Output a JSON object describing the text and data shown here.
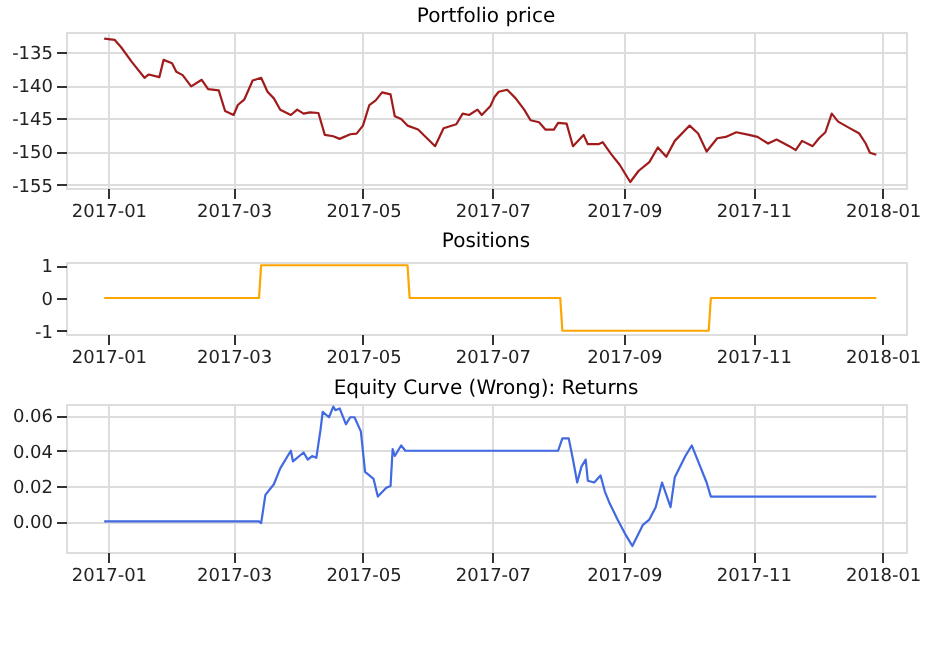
{
  "chart_data": [
    {
      "type": "line",
      "title": "Portfolio price",
      "grid": true,
      "xlim": [
        "2016-12-12",
        "2018-01-12"
      ],
      "xticks": [
        "2017-01",
        "2017-03",
        "2017-05",
        "2017-07",
        "2017-09",
        "2017-11",
        "2018-01"
      ],
      "ylim": [
        -155.5,
        -132
      ],
      "yticks": [
        -155,
        -150,
        -145,
        -140,
        -135
      ],
      "x": [
        "2016-12-30",
        "2017-01-04",
        "2017-01-07",
        "2017-01-12",
        "2017-01-18",
        "2017-01-20",
        "2017-01-25",
        "2017-01-27",
        "2017-01-31",
        "2017-02-02",
        "2017-02-05",
        "2017-02-09",
        "2017-02-14",
        "2017-02-17",
        "2017-02-22",
        "2017-02-25",
        "2017-03-01",
        "2017-03-03",
        "2017-03-06",
        "2017-03-10",
        "2017-03-14",
        "2017-03-17",
        "2017-03-20",
        "2017-03-23",
        "2017-03-28",
        "2017-03-31",
        "2017-04-03",
        "2017-04-06",
        "2017-04-10",
        "2017-04-13",
        "2017-04-17",
        "2017-04-20",
        "2017-04-25",
        "2017-04-28",
        "2017-05-01",
        "2017-05-04",
        "2017-05-07",
        "2017-05-10",
        "2017-05-14",
        "2017-05-16",
        "2017-05-19",
        "2017-05-22",
        "2017-05-27",
        "2017-06-04",
        "2017-06-08",
        "2017-06-14",
        "2017-06-17",
        "2017-06-20",
        "2017-06-24",
        "2017-06-26",
        "2017-06-30",
        "2017-07-02",
        "2017-07-04",
        "2017-07-08",
        "2017-07-12",
        "2017-07-16",
        "2017-07-19",
        "2017-07-23",
        "2017-07-26",
        "2017-07-30",
        "2017-08-01",
        "2017-08-05",
        "2017-08-08",
        "2017-08-13",
        "2017-08-15",
        "2017-08-20",
        "2017-08-22",
        "2017-08-26",
        "2017-08-30",
        "2017-09-04",
        "2017-09-08",
        "2017-09-13",
        "2017-09-17",
        "2017-09-21",
        "2017-09-25",
        "2017-10-02",
        "2017-10-06",
        "2017-10-10",
        "2017-10-15",
        "2017-10-19",
        "2017-10-24",
        "2017-10-30",
        "2017-11-03",
        "2017-11-08",
        "2017-11-12",
        "2017-11-18",
        "2017-11-21",
        "2017-11-24",
        "2017-11-29",
        "2017-12-02",
        "2017-12-05",
        "2017-12-08",
        "2017-12-11",
        "2017-12-16",
        "2017-12-21",
        "2017-12-24",
        "2017-12-26",
        "2017-12-29"
      ],
      "series": [
        {
          "color": "#a01c1c",
          "values": [
            -133.0,
            -133.2,
            -134.3,
            -136.5,
            -138.9,
            -138.4,
            -138.8,
            -136.2,
            -136.7,
            -138.0,
            -138.5,
            -140.2,
            -139.2,
            -140.6,
            -140.8,
            -143.9,
            -144.5,
            -143.0,
            -142.2,
            -139.3,
            -138.9,
            -141.0,
            -142.0,
            -143.7,
            -144.5,
            -143.7,
            -144.3,
            -144.1,
            -144.2,
            -147.5,
            -147.7,
            -148.1,
            -147.4,
            -147.3,
            -146.1,
            -143.0,
            -142.3,
            -141.1,
            -141.4,
            -144.7,
            -145.1,
            -146.1,
            -146.7,
            -149.2,
            -146.5,
            -145.9,
            -144.3,
            -144.5,
            -143.7,
            -144.5,
            -143.2,
            -141.8,
            -141.0,
            -140.7,
            -142.0,
            -143.7,
            -145.3,
            -145.6,
            -146.7,
            -146.7,
            -145.7,
            -145.8,
            -149.2,
            -147.5,
            -148.9,
            -148.9,
            -148.6,
            -150.4,
            -152.0,
            -154.6,
            -152.9,
            -151.6,
            -149.4,
            -150.8,
            -148.4,
            -146.1,
            -147.3,
            -150.0,
            -148.0,
            -147.8,
            -147.1,
            -147.5,
            -147.8,
            -148.8,
            -148.2,
            -149.2,
            -149.8,
            -148.4,
            -149.2,
            -148.0,
            -147.1,
            -144.3,
            -145.5,
            -146.4,
            -147.3,
            -148.8,
            -150.2,
            -150.5
          ]
        }
      ]
    },
    {
      "type": "line",
      "title": "Positions",
      "grid": false,
      "xlim": [
        "2016-12-12",
        "2018-01-12"
      ],
      "xticks": [
        "2017-01",
        "2017-03",
        "2017-05",
        "2017-07",
        "2017-09",
        "2017-11",
        "2018-01"
      ],
      "ylim": [
        -1.1,
        1.1
      ],
      "yticks": [
        -1,
        0,
        1
      ],
      "x": [
        "2016-12-30",
        "2017-03-13",
        "2017-03-14",
        "2017-05-22",
        "2017-05-23",
        "2017-08-02",
        "2017-08-03",
        "2017-10-11",
        "2017-10-12",
        "2017-12-29"
      ],
      "series": [
        {
          "color": "#ffa500",
          "values": [
            0,
            0,
            1,
            1,
            0,
            0,
            -1,
            -1,
            0,
            0
          ]
        }
      ]
    },
    {
      "type": "line",
      "title": "Equity Curve (Wrong): Returns",
      "grid": true,
      "xlim": [
        "2016-12-12",
        "2018-01-12"
      ],
      "xticks": [
        "2017-01",
        "2017-03",
        "2017-05",
        "2017-07",
        "2017-09",
        "2017-11",
        "2018-01"
      ],
      "ylim": [
        -0.0174,
        0.0665
      ],
      "yticks": [
        {
          "value": 0,
          "label": "0.00"
        },
        {
          "value": 0.02,
          "label": "0.02"
        },
        {
          "value": 0.04,
          "label": "0.04"
        },
        {
          "value": 0.06,
          "label": "0.06"
        }
      ],
      "x": [
        "2016-12-30",
        "2017-03-13",
        "2017-03-14",
        "2017-03-16",
        "2017-03-20",
        "2017-03-23",
        "2017-03-28",
        "2017-03-29",
        "2017-04-03",
        "2017-04-05",
        "2017-04-07",
        "2017-04-09",
        "2017-04-11",
        "2017-04-12",
        "2017-04-15",
        "2017-04-17",
        "2017-04-18",
        "2017-04-20",
        "2017-04-23",
        "2017-04-25",
        "2017-04-27",
        "2017-04-30",
        "2017-05-02",
        "2017-05-06",
        "2017-05-08",
        "2017-05-12",
        "2017-05-14",
        "2017-05-15",
        "2017-05-16",
        "2017-05-19",
        "2017-05-21",
        "2017-08-01",
        "2017-08-03",
        "2017-08-06",
        "2017-08-08",
        "2017-08-10",
        "2017-08-12",
        "2017-08-14",
        "2017-08-15",
        "2017-08-18",
        "2017-08-21",
        "2017-08-23",
        "2017-08-25",
        "2017-08-29",
        "2017-09-02",
        "2017-09-05",
        "2017-09-10",
        "2017-09-13",
        "2017-09-16",
        "2017-09-19",
        "2017-09-23",
        "2017-09-25",
        "2017-09-30",
        "2017-10-03",
        "2017-10-07",
        "2017-10-10",
        "2017-10-12",
        "2017-12-29"
      ],
      "series": [
        {
          "color": "#4169e1",
          "values": [
            0,
            0,
            -0.001,
            0.015,
            0.021,
            0.03,
            0.04,
            0.034,
            0.039,
            0.035,
            0.037,
            0.036,
            0.052,
            0.062,
            0.059,
            0.065,
            0.063,
            0.064,
            0.055,
            0.059,
            0.059,
            0.051,
            0.028,
            0.024,
            0.014,
            0.019,
            0.02,
            0.041,
            0.037,
            0.043,
            0.04,
            0.04,
            0.047,
            0.047,
            0.035,
            0.022,
            0.031,
            0.035,
            0.023,
            0.022,
            0.026,
            0.017,
            0.011,
            0.001,
            -0.008,
            -0.014,
            -0.002,
            0.001,
            0.008,
            0.022,
            0.008,
            0.025,
            0.037,
            0.043,
            0.031,
            0.022,
            0.014,
            0.014
          ]
        }
      ]
    }
  ]
}
